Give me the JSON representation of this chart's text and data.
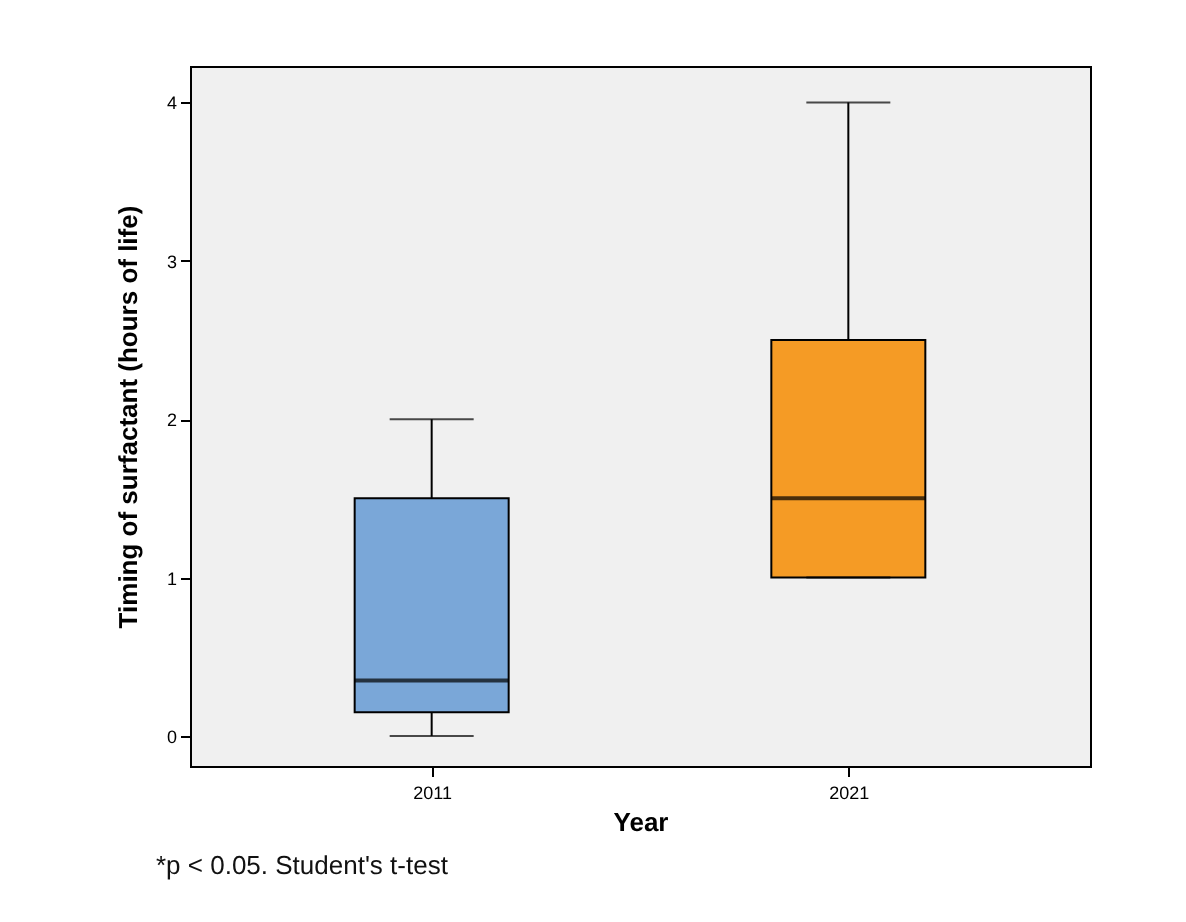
{
  "chart_data": {
    "type": "box",
    "xlabel": "Year",
    "ylabel": "Timing of surfactant (hours of life)",
    "categories": [
      "2011",
      "2021"
    ],
    "colors": [
      "#7aa7d8",
      "#f59b25"
    ],
    "boxes": [
      {
        "low": 0,
        "q1": 0.15,
        "median": 0.35,
        "q3": 1.5,
        "high": 2
      },
      {
        "low": 1,
        "q1": 1,
        "median": 1.5,
        "q3": 2.5,
        "high": 4
      }
    ],
    "ylim": [
      -0.19,
      4.23
    ],
    "yticks": [
      0,
      1,
      2,
      3,
      4
    ],
    "grid": false,
    "legend": false,
    "annotations": [
      "*p <  0.05. Student's t-test"
    ]
  }
}
